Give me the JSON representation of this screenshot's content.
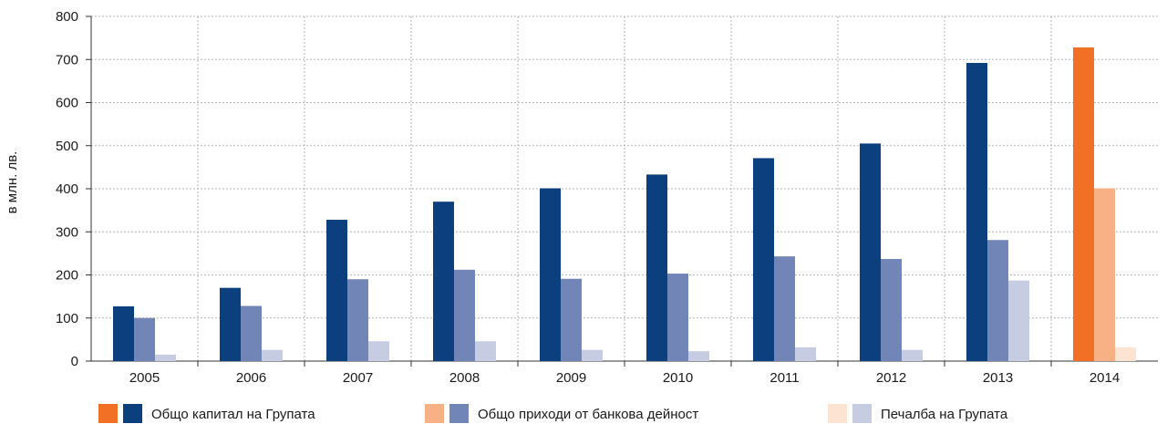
{
  "chart_data": {
    "type": "bar",
    "title": "",
    "xlabel": "",
    "ylabel": "в млн. лв.",
    "ylim": [
      0,
      800
    ],
    "yticks": [
      0,
      100,
      200,
      300,
      400,
      500,
      600,
      700,
      800
    ],
    "grid": true,
    "legend_position": "bottom",
    "categories": [
      "2005",
      "2006",
      "2007",
      "2008",
      "2009",
      "2010",
      "2011",
      "2012",
      "2013",
      "2014"
    ],
    "highlight_category": "2014",
    "series": [
      {
        "name": "Общо капитал на Групата",
        "values": [
          127,
          170,
          328,
          370,
          401,
          433,
          471,
          505,
          692,
          728
        ],
        "color": "#0c3f7e",
        "highlight_color": "#f26f26"
      },
      {
        "name": "Общо приходи от банкова дейност",
        "values": [
          100,
          128,
          190,
          212,
          191,
          203,
          243,
          237,
          281,
          401
        ],
        "color": "#7185b6",
        "highlight_color": "#f8b184"
      },
      {
        "name": "Печалба на Групата",
        "values": [
          15,
          26,
          46,
          46,
          26,
          23,
          32,
          26,
          187,
          32
        ],
        "color": "#c6cde3",
        "highlight_color": "#fde3d2"
      }
    ]
  }
}
